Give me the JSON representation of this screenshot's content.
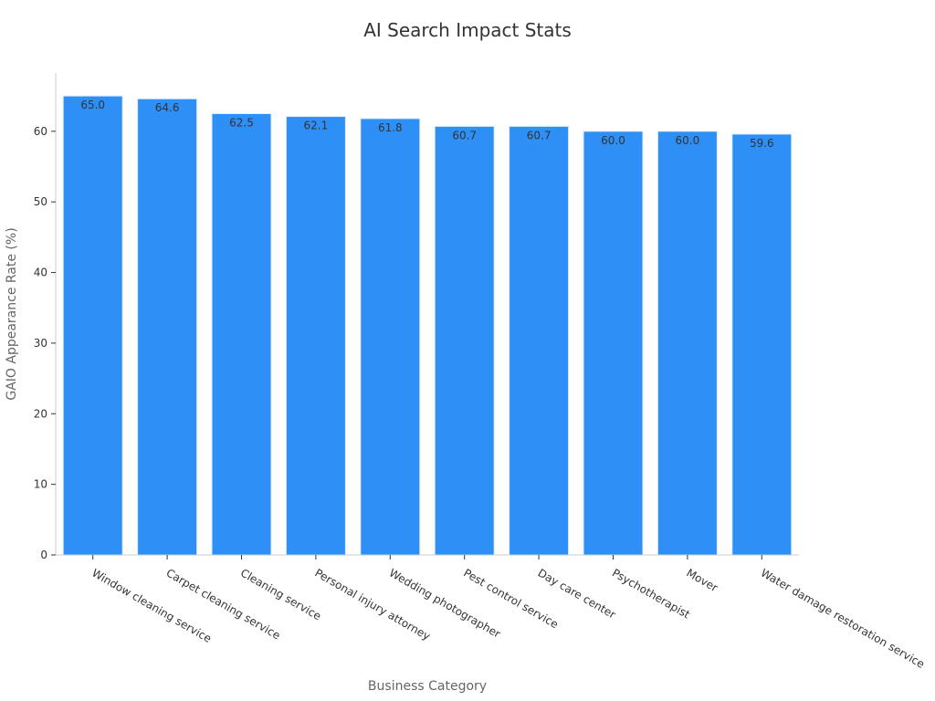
{
  "chart_data": {
    "type": "bar",
    "title": "AI Search Impact Stats",
    "xlabel": "Business Category",
    "ylabel": "GAIO Appearance Rate (%)",
    "categories": [
      "Window cleaning service",
      "Carpet cleaning service",
      "Cleaning service",
      "Personal injury attorney",
      "Wedding photographer",
      "Pest control service",
      "Day care center",
      "Psychotherapist",
      "Mover",
      "Water damage restoration service"
    ],
    "values": [
      65.0,
      64.6,
      62.5,
      62.1,
      61.8,
      60.7,
      60.7,
      60.0,
      60.0,
      59.6
    ],
    "value_labels": [
      "65.0",
      "64.6",
      "62.5",
      "62.1",
      "61.8",
      "60.7",
      "60.7",
      "60.0",
      "60.0",
      "59.6"
    ],
    "yticks": [
      0,
      10,
      20,
      30,
      40,
      50,
      60
    ],
    "ylim": [
      0,
      68.25
    ],
    "bar_color": "#2e8ff7",
    "bar_edge_color": "#e0ecfa",
    "grid": false
  }
}
